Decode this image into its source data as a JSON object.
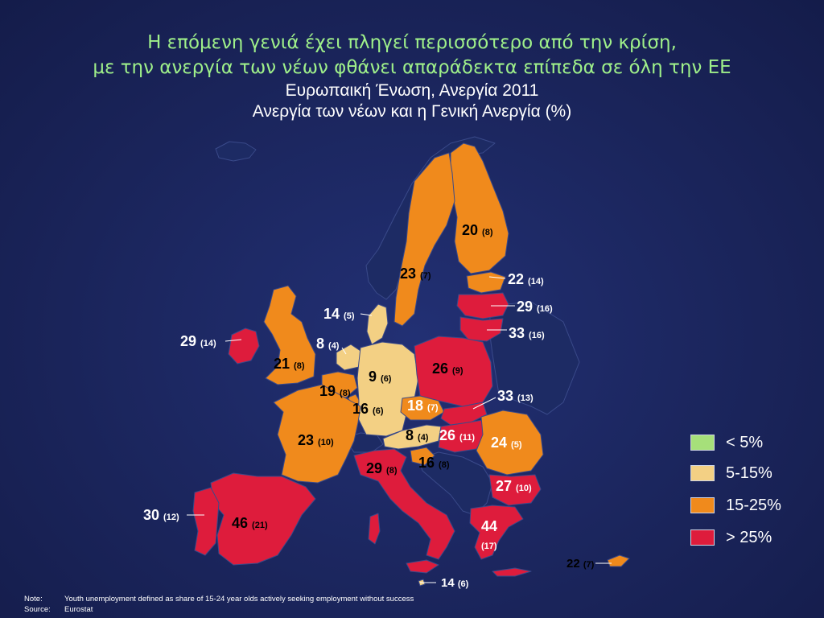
{
  "title": {
    "line1": "Η επόμενη γενιά έχει πληγεί περισσότερο από την κρίση,",
    "line2": "με την ανεργία των νέων φθάνει απαράδεκτα επίπεδα σε όλη την ΕΕ",
    "line3": "Ευρωπαική Ένωση, Ανεργία 2011",
    "line4": "Ανεργία των νέων και η Γενική Ανεργία (%)"
  },
  "colors": {
    "background": "#1b2660",
    "non_eu": "#1c2a63",
    "band_lt5": "#a6e07a",
    "band_5_15": "#f3d084",
    "band_15_25": "#f08a1c",
    "band_gt25": "#de1c3c",
    "border": "#3a4a8a"
  },
  "countries": [
    {
      "name": "finland",
      "youth": "20",
      "general": "(8)",
      "band": "15-25"
    },
    {
      "name": "sweden",
      "youth": "23",
      "general": "(7)",
      "band": "15-25"
    },
    {
      "name": "estonia",
      "youth": "22",
      "general": "(14)",
      "band": "15-25"
    },
    {
      "name": "latvia",
      "youth": "29",
      "general": "(16)",
      "band": ">25"
    },
    {
      "name": "lithuania",
      "youth": "33",
      "general": "(16)",
      "band": ">25"
    },
    {
      "name": "denmark",
      "youth": "14",
      "general": "(5)",
      "band": "5-15"
    },
    {
      "name": "ireland",
      "youth": "29",
      "general": "(14)",
      "band": ">25"
    },
    {
      "name": "netherlands",
      "youth": "8",
      "general": "(4)",
      "band": "5-15"
    },
    {
      "name": "united-kingdom",
      "youth": "21",
      "general": "(8)",
      "band": "15-25"
    },
    {
      "name": "germany",
      "youth": "9",
      "general": "(6)",
      "band": "5-15"
    },
    {
      "name": "poland",
      "youth": "26",
      "general": "(9)",
      "band": ">25"
    },
    {
      "name": "belgium",
      "youth": "19",
      "general": "(8)",
      "band": "15-25"
    },
    {
      "name": "luxembourg",
      "youth": "16",
      "general": "(6)",
      "band": "15-25"
    },
    {
      "name": "czech-republic",
      "youth": "18",
      "general": "(7)",
      "band": "15-25"
    },
    {
      "name": "slovakia",
      "youth": "33",
      "general": "(13)",
      "band": ">25"
    },
    {
      "name": "france",
      "youth": "23",
      "general": "(10)",
      "band": "15-25"
    },
    {
      "name": "austria",
      "youth": "8",
      "general": "(4)",
      "band": "5-15"
    },
    {
      "name": "hungary",
      "youth": "26",
      "general": "(11)",
      "band": ">25"
    },
    {
      "name": "romania",
      "youth": "24",
      "general": "(5)",
      "band": "15-25"
    },
    {
      "name": "slovenia",
      "youth": "16",
      "general": "(8)",
      "band": "15-25"
    },
    {
      "name": "italy",
      "youth": "29",
      "general": "(8)",
      "band": ">25"
    },
    {
      "name": "bulgaria",
      "youth": "27",
      "general": "(10)",
      "band": ">25"
    },
    {
      "name": "portugal",
      "youth": "30",
      "general": "(12)",
      "band": ">25"
    },
    {
      "name": "spain",
      "youth": "46",
      "general": "(21)",
      "band": ">25"
    },
    {
      "name": "greece",
      "youth": "44",
      "general": "(17)",
      "band": ">25"
    },
    {
      "name": "cyprus",
      "youth": "22",
      "general": "(7)",
      "band": "15-25"
    },
    {
      "name": "malta",
      "youth": "14",
      "general": "(6)",
      "band": "5-15"
    }
  ],
  "legend": [
    {
      "label": "< 5%",
      "color": "#a6e07a"
    },
    {
      "label": "5-15%",
      "color": "#f3d084"
    },
    {
      "label": "15-25%",
      "color": "#f08a1c"
    },
    {
      "label": "> 25%",
      "color": "#de1c3c"
    }
  ],
  "note": {
    "note_key": "Note:",
    "note_text": "Youth unemployment defined as share of 15-24 year olds actively seeking employment without success",
    "source_key": "Source:",
    "source_text": "Eurostat"
  }
}
